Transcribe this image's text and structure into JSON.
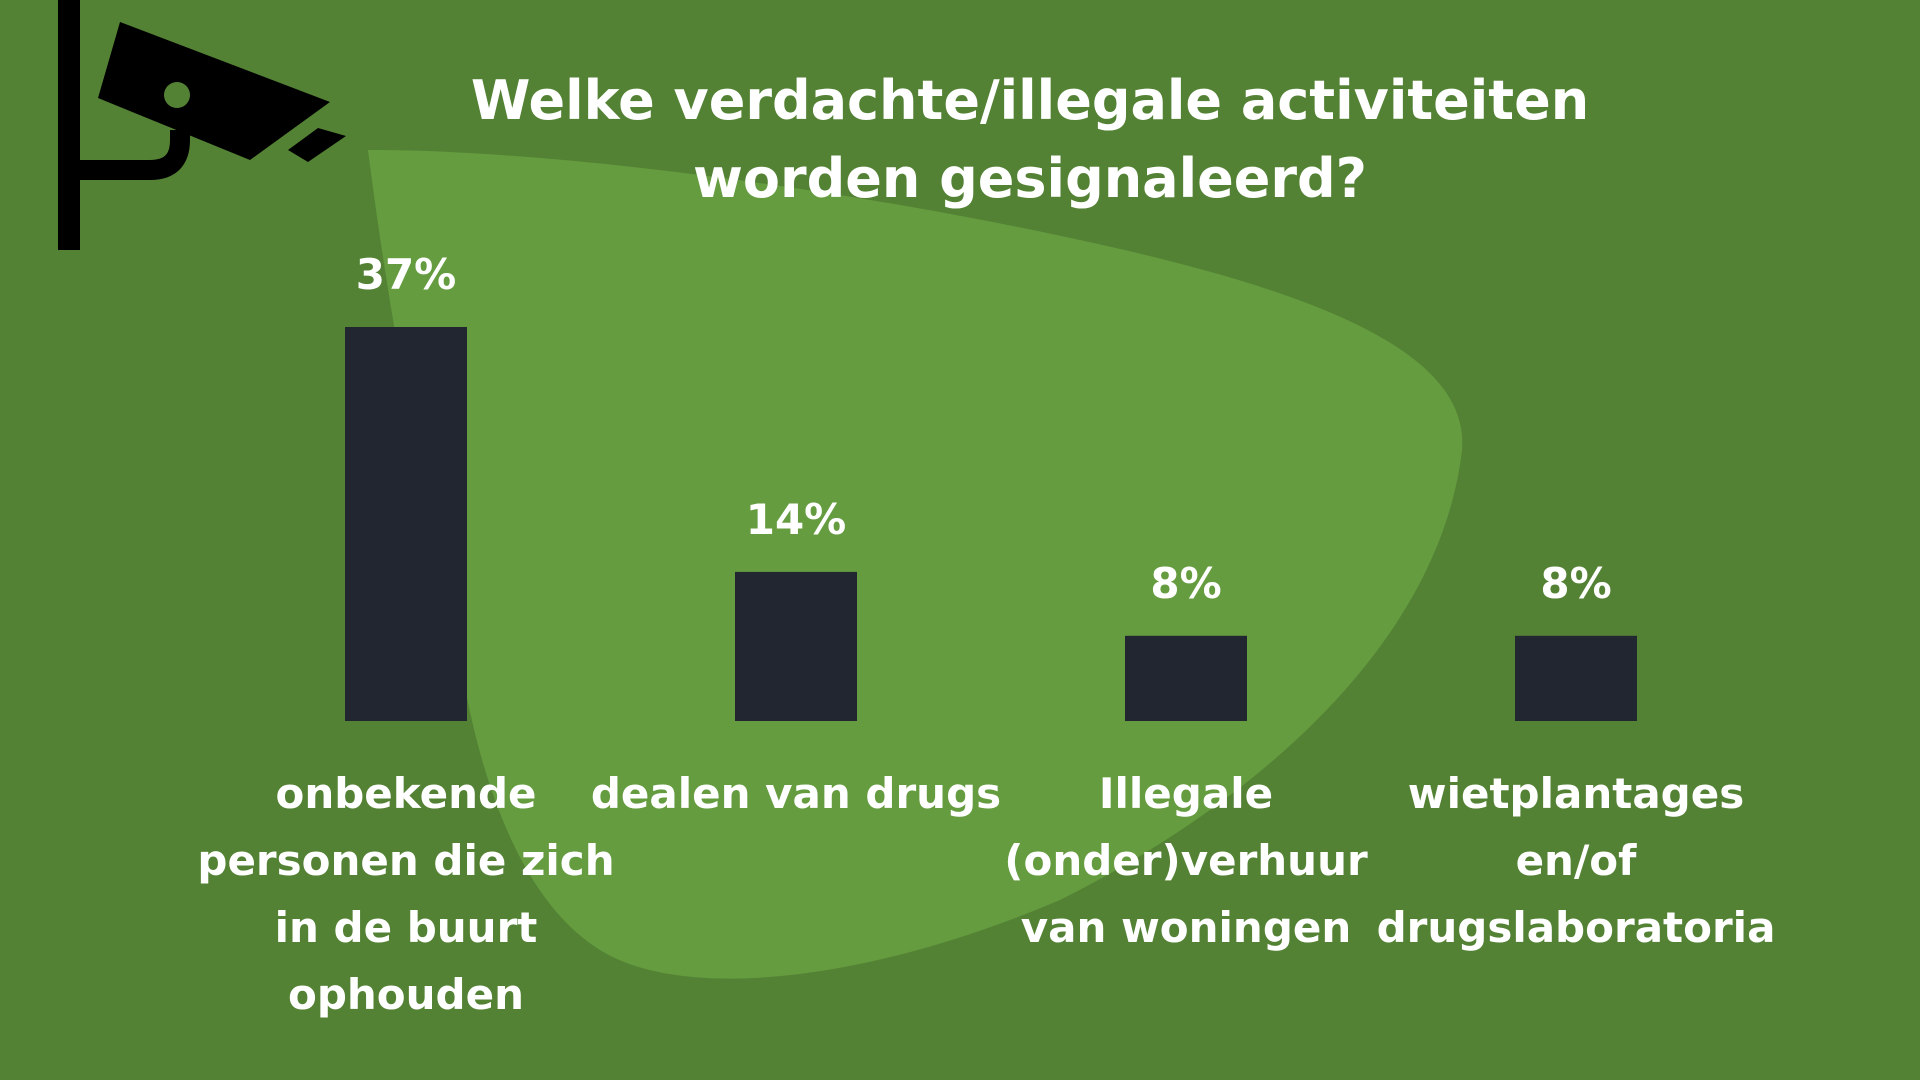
{
  "title": {
    "line1": "Welke verdachte/illegale activiteiten",
    "line2": "worden gesignaleerd?"
  },
  "icon": "security-camera-icon",
  "colors": {
    "background": "#548235",
    "blob": "#659C3F",
    "bars": "#212631",
    "text": "#FFFFFF",
    "icon": "#000000"
  },
  "chart_data": {
    "type": "bar",
    "title": "Welke verdachte/illegale activiteiten worden gesignaleerd?",
    "categories": [
      "onbekende personen die zich in de buurt ophouden",
      "dealen van drugs",
      "Illegale (onder)verhuur van woningen",
      "wietplantages en/of drugslaboratoria"
    ],
    "category_lines": [
      [
        "onbekende",
        "personen die zich",
        "in de buurt",
        "ophouden"
      ],
      [
        "dealen van drugs"
      ],
      [
        "Illegale",
        "(onder)verhuur",
        "van woningen"
      ],
      [
        "wietplantages",
        "en/of",
        "drugslaboratoria"
      ]
    ],
    "values": [
      37,
      14,
      8,
      8
    ],
    "data_labels": [
      "37%",
      "14%",
      "8%",
      "8%"
    ],
    "unit": "%",
    "ylim": [
      0,
      37
    ],
    "xlabel": "",
    "ylabel": "",
    "grid": false,
    "legend": "none"
  }
}
